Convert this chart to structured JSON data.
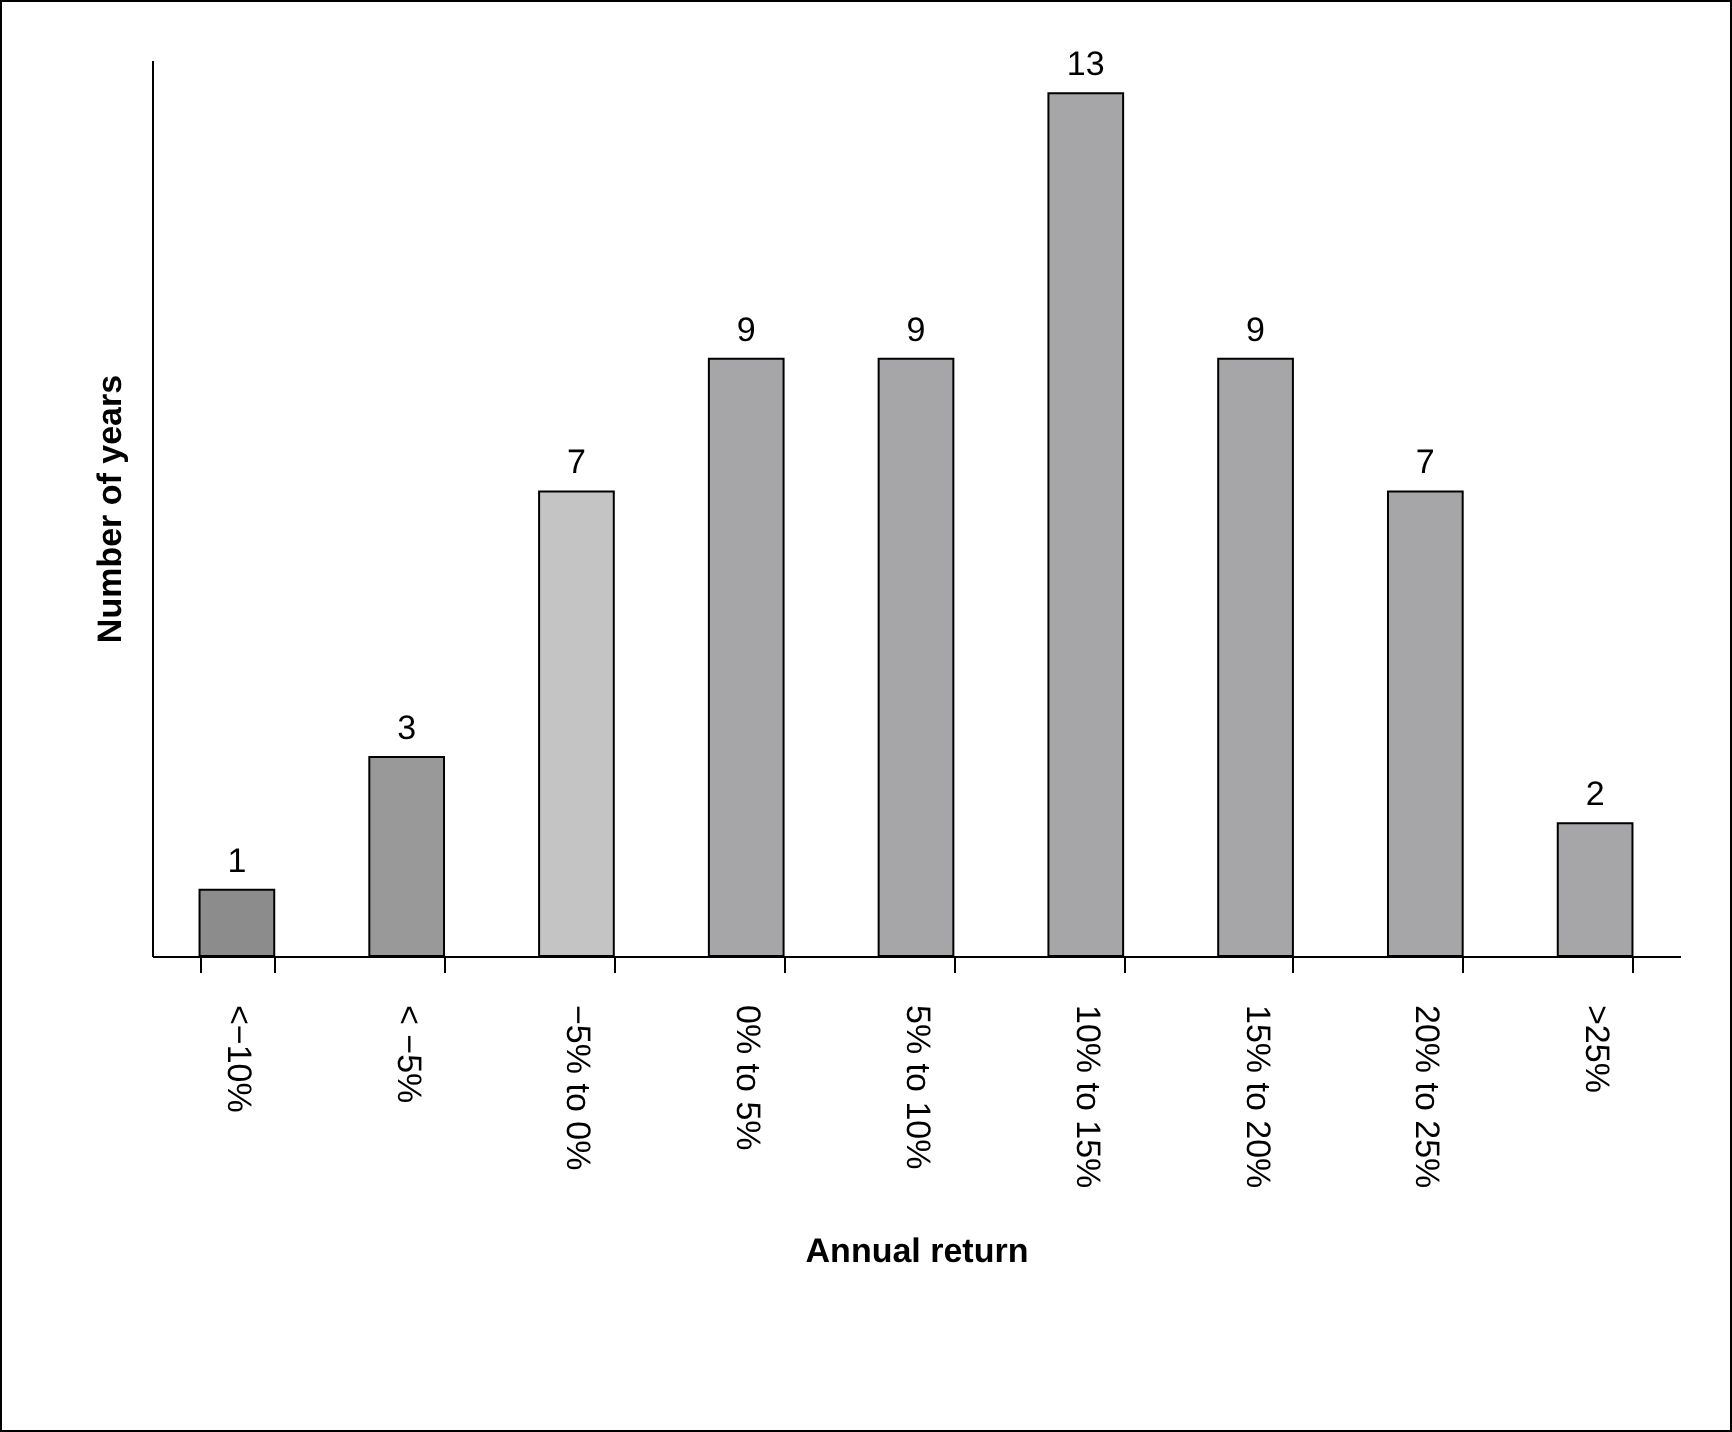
{
  "chart_data": {
    "type": "bar",
    "xlabel": "Annual return",
    "ylabel": "Number of years",
    "categories": [
      "<−10%",
      "< −5%",
      "−5% to 0%",
      "0% to 5%",
      "5% to 10%",
      "10% to 15%",
      "15% to 20%",
      "20% to 25%",
      ">25%"
    ],
    "values": [
      1,
      3,
      7,
      9,
      9,
      13,
      9,
      7,
      2
    ],
    "colors": [
      "#8c8c8c",
      "#999999",
      "#c4c4c4",
      "#a6a6a8",
      "#a6a6a8",
      "#a6a6a8",
      "#a6a6a8",
      "#a6a6a8",
      "#a6a6a8"
    ],
    "ylim": [
      0,
      13.5
    ],
    "data_labels": true,
    "tick_labels": "x"
  }
}
